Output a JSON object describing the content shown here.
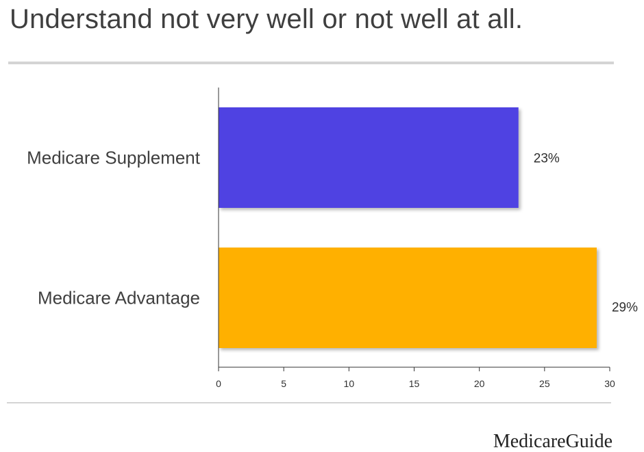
{
  "chart_data": {
    "type": "bar",
    "orientation": "horizontal",
    "title": "Understand not very well or not well at all.",
    "categories": [
      "Medicare Supplement",
      "Medicare Advantage"
    ],
    "values": [
      23,
      29
    ],
    "value_labels": [
      "23%",
      "29%"
    ],
    "colors": [
      "#4f43e2",
      "#ffb000"
    ],
    "xlim": [
      0,
      30
    ],
    "xticks": [
      0,
      5,
      10,
      15,
      20,
      25,
      30
    ],
    "grid": false,
    "legend": "none"
  },
  "branding": {
    "logo_text": "MedicareGuide"
  }
}
